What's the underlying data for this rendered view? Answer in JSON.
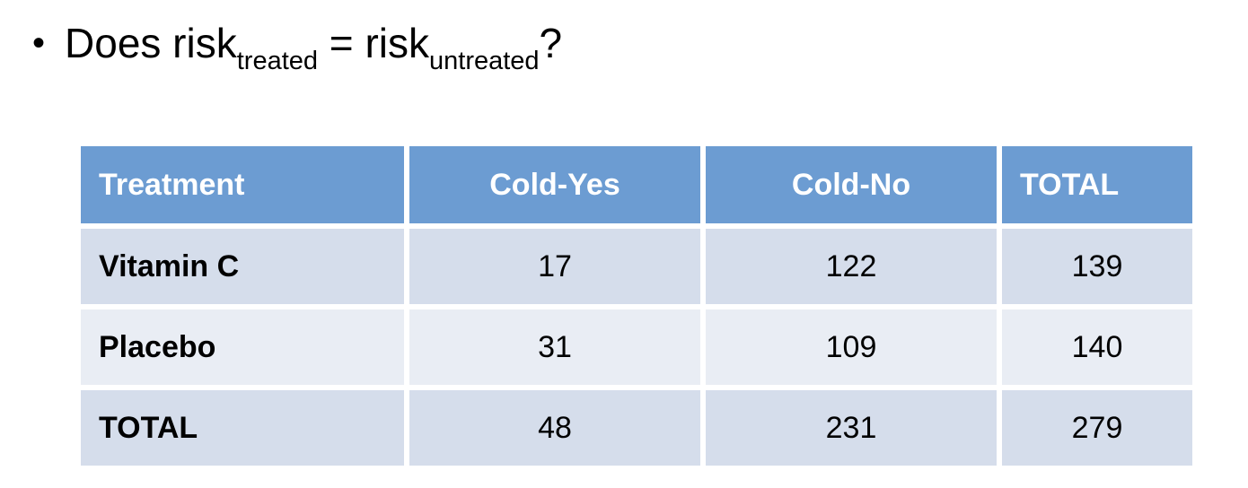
{
  "title": {
    "bullet": "•",
    "prefix": "Does risk",
    "sub1": "treated",
    "middle": " = risk",
    "sub2": "untreated",
    "suffix": "?"
  },
  "table": {
    "headers": [
      "Treatment",
      "Cold-Yes",
      "Cold-No",
      "TOTAL"
    ],
    "rows": [
      {
        "label": "Vitamin C",
        "values": [
          "17",
          "122",
          "139"
        ]
      },
      {
        "label": "Placebo",
        "values": [
          "31",
          "109",
          "140"
        ]
      },
      {
        "label": "TOTAL",
        "values": [
          "48",
          "231",
          "279"
        ]
      }
    ]
  },
  "colors": {
    "header_bg": "#6C9CD2",
    "header_text": "#FFFFFF",
    "row_odd_bg": "#D5DDEB",
    "row_even_bg": "#E9EDF4",
    "body_text": "#000000",
    "background": "#FFFFFF"
  },
  "chart_data": {
    "type": "table",
    "title": "Does risk_treated = risk_untreated?",
    "columns": [
      "Treatment",
      "Cold-Yes",
      "Cold-No",
      "TOTAL"
    ],
    "rows": [
      [
        "Vitamin C",
        17,
        122,
        139
      ],
      [
        "Placebo",
        31,
        109,
        140
      ],
      [
        "TOTAL",
        48,
        231,
        279
      ]
    ]
  }
}
